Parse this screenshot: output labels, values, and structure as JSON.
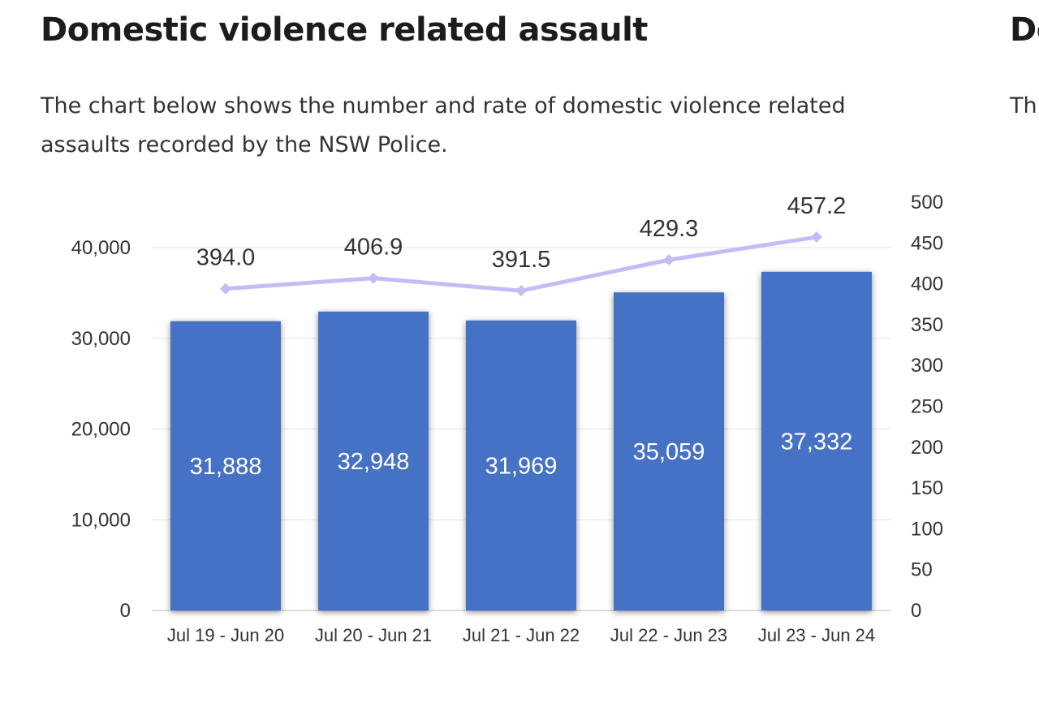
{
  "section": {
    "title": "Domestic violence related assault",
    "description": "The chart below shows the number and rate of domestic violence related\nassaults recorded by the NSW Police."
  },
  "next_section": {
    "title": "De",
    "description": "Th\nrec"
  },
  "colors": {
    "bar": "#4472c4",
    "line": "#c3bdf5",
    "grid": "#e3e3e3",
    "text": "#333333"
  },
  "chart_data": {
    "type": "bar",
    "categories": [
      "Jul 19 - Jun 20",
      "Jul 20 - Jun 21",
      "Jul 21 - Jun 22",
      "Jul 22 - Jun 23",
      "Jul 23 - Jun 24"
    ],
    "series": [
      {
        "type": "bar",
        "axis": "left",
        "values": [
          31888,
          32948,
          31969,
          35059,
          37332
        ],
        "labels": [
          "31,888",
          "32,948",
          "31,969",
          "35,059",
          "37,332"
        ]
      },
      {
        "type": "line",
        "axis": "right",
        "values": [
          394.0,
          406.9,
          391.5,
          429.3,
          457.2
        ],
        "labels": [
          "394.0",
          "406.9",
          "391.5",
          "429.3",
          "457.2"
        ]
      }
    ],
    "y_left": {
      "range": [
        0,
        40000
      ],
      "ticks": [
        0,
        10000,
        20000,
        30000,
        40000
      ],
      "tick_labels": [
        "0",
        "10,000",
        "20,000",
        "30,000",
        "40,000"
      ]
    },
    "y_right": {
      "range": [
        0,
        500
      ],
      "ticks": [
        0,
        50,
        100,
        150,
        200,
        250,
        300,
        350,
        400,
        450,
        500
      ],
      "tick_labels": [
        "0",
        "50",
        "100",
        "150",
        "200",
        "250",
        "300",
        "350",
        "400",
        "450",
        "500"
      ]
    },
    "grid": true,
    "legend": "none"
  }
}
